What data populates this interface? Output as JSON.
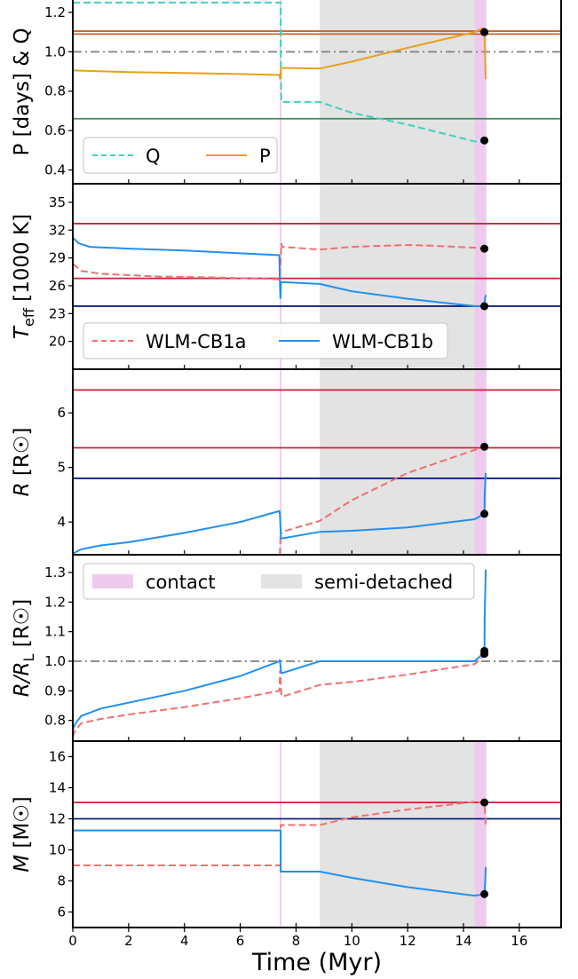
{
  "figure": {
    "xlabel": "Time (Myr)",
    "xlim": [
      0,
      17.5
    ],
    "xticks": [
      0,
      2,
      4,
      6,
      8,
      10,
      12,
      14,
      16
    ]
  },
  "chart_data": [
    {
      "type": "line",
      "ylabel": "P [days] & Q",
      "ylim": [
        0.33,
        1.29
      ],
      "yticks": [
        0.4,
        0.6,
        0.8,
        1.0,
        1.2
      ],
      "ytick_labels": [
        "0.4",
        "0.6",
        "0.8",
        "1.0",
        "1.2"
      ],
      "bands": [
        {
          "name": "semi-detached",
          "x0": 8.85,
          "x1": 14.4,
          "color": "#e3e3e3"
        },
        {
          "name": "contact",
          "x0": 14.4,
          "x1": 14.82,
          "color": "#eecbee"
        },
        {
          "name": "contact",
          "x0": 7.42,
          "x1": 7.48,
          "color": "#eecbee"
        }
      ],
      "hlines": [
        {
          "y": 1.105,
          "color": "#c8642a",
          "style": "solid"
        },
        {
          "y": 1.09,
          "color": "#c8642a",
          "style": "solid"
        },
        {
          "y": 1.0,
          "color": "#808080",
          "style": "dashdot"
        },
        {
          "y": 0.66,
          "color": "#3c8c5a",
          "style": "solid"
        }
      ],
      "series": [
        {
          "name": "Q",
          "color": "#40d0c0",
          "style": "dashed",
          "x": [
            0,
            7.45,
            7.45,
            7.47,
            8.85,
            10,
            12,
            14.4,
            14.75,
            14.75,
            14.82
          ],
          "y": [
            1.25,
            1.25,
            1.0,
            0.745,
            0.745,
            0.69,
            0.63,
            0.545,
            0.54,
            0.53,
            0.55
          ]
        },
        {
          "name": "P",
          "color": "#e8a020",
          "style": "solid",
          "x": [
            0,
            2,
            4,
            6,
            7.4,
            7.43,
            7.46,
            7.5,
            8.85,
            10,
            12,
            14.4,
            14.7,
            14.75,
            14.78,
            14.8
          ],
          "y": [
            0.905,
            0.897,
            0.892,
            0.887,
            0.882,
            0.86,
            0.92,
            0.918,
            0.915,
            0.95,
            1.02,
            1.1,
            1.12,
            1.1,
            0.95,
            0.86
          ]
        }
      ],
      "markers": [
        {
          "x": 14.75,
          "y": 1.1
        },
        {
          "x": 14.75,
          "y": 0.55
        }
      ],
      "legend": {
        "placement": "lower-left",
        "entries": [
          "Q",
          "P"
        ]
      }
    },
    {
      "type": "line",
      "ylabel": "T_eff [1000 K]",
      "ylabel_main": "T",
      "ylabel_sub": "eff",
      "ylabel_rest": " [1000 K]",
      "ylim": [
        17.0,
        37.0
      ],
      "yticks": [
        20,
        23,
        26,
        29,
        32,
        35
      ],
      "ytick_labels": [
        "20",
        "23",
        "26",
        "29",
        "32",
        "35"
      ],
      "bands": [
        {
          "name": "semi-detached",
          "x0": 8.85,
          "x1": 14.4,
          "color": "#e3e3e3"
        },
        {
          "name": "contact",
          "x0": 14.4,
          "x1": 14.82,
          "color": "#eecbee"
        },
        {
          "name": "contact",
          "x0": 7.42,
          "x1": 7.48,
          "color": "#eecbee"
        }
      ],
      "hlines": [
        {
          "y": 32.7,
          "color": "#d0203c",
          "style": "solid"
        },
        {
          "y": 26.8,
          "color": "#d0203c",
          "style": "solid"
        },
        {
          "y": 23.8,
          "color": "#10207a",
          "style": "solid"
        }
      ],
      "series": [
        {
          "name": "WLM-CB1a",
          "color": "#f07070",
          "style": "dashed",
          "x": [
            0,
            0.3,
            1,
            3,
            5,
            7.4,
            7.45,
            7.47,
            7.5,
            8.85,
            10,
            12,
            13,
            14.4,
            14.75
          ],
          "y": [
            28.4,
            27.6,
            27.3,
            27.0,
            26.9,
            26.7,
            28.5,
            30.6,
            30.2,
            29.9,
            30.2,
            30.4,
            30.3,
            30.1,
            30.0
          ]
        },
        {
          "name": "WLM-CB1b",
          "color": "#2090f0",
          "style": "solid",
          "x": [
            0,
            0.2,
            0.6,
            2,
            4,
            6,
            7.4,
            7.42,
            7.44,
            7.46,
            8.85,
            10,
            12,
            14.4,
            14.75,
            14.76,
            14.8
          ],
          "y": [
            31.2,
            30.6,
            30.2,
            30.0,
            29.8,
            29.5,
            29.3,
            26.5,
            24.6,
            26.4,
            26.2,
            25.4,
            24.6,
            23.8,
            23.8,
            24.4,
            25.0
          ]
        }
      ],
      "markers": [
        {
          "x": 14.75,
          "y": 30.0
        },
        {
          "x": 14.75,
          "y": 23.8
        }
      ],
      "legend": {
        "placement": "lower-left",
        "entries": [
          "WLM-CB1a",
          "WLM-CB1b"
        ]
      }
    },
    {
      "type": "line",
      "ylabel": "R [R☉]",
      "ylabel_main": "R",
      "ylabel_rest": " [R☉]",
      "ylim": [
        3.4,
        6.8
      ],
      "yticks": [
        4,
        5,
        6
      ],
      "ytick_labels": [
        "4",
        "5",
        "6"
      ],
      "bands": [
        {
          "name": "semi-detached",
          "x0": 8.85,
          "x1": 14.4,
          "color": "#e3e3e3"
        },
        {
          "name": "contact",
          "x0": 14.4,
          "x1": 14.82,
          "color": "#eecbee"
        },
        {
          "name": "contact",
          "x0": 7.42,
          "x1": 7.48,
          "color": "#eecbee"
        }
      ],
      "hlines": [
        {
          "y": 6.42,
          "color": "#d0203c",
          "style": "solid"
        },
        {
          "y": 5.36,
          "color": "#d0203c",
          "style": "solid"
        },
        {
          "y": 4.8,
          "color": "#10207a",
          "style": "solid"
        }
      ],
      "series": [
        {
          "name": "WLM-CB1a",
          "color": "#f07070",
          "style": "dashed",
          "x": [
            7.42,
            7.45,
            7.47,
            7.5,
            8.85,
            10,
            12,
            14.4,
            14.75
          ],
          "y": [
            3.4,
            3.85,
            3.8,
            3.82,
            4.02,
            4.4,
            4.9,
            5.32,
            5.38
          ]
        },
        {
          "name": "WLM-CB1b",
          "color": "#2090f0",
          "style": "solid",
          "x": [
            0,
            0.3,
            1,
            2,
            4,
            6,
            7.4,
            7.42,
            7.46,
            7.5,
            8.85,
            10,
            12,
            14.4,
            14.75,
            14.76,
            14.8
          ],
          "y": [
            3.42,
            3.5,
            3.57,
            3.63,
            3.8,
            4.0,
            4.2,
            4.15,
            3.7,
            3.7,
            3.82,
            3.84,
            3.9,
            4.05,
            4.15,
            4.5,
            4.9
          ]
        }
      ],
      "markers": [
        {
          "x": 14.75,
          "y": 5.38
        },
        {
          "x": 14.75,
          "y": 4.15
        }
      ]
    },
    {
      "type": "line",
      "ylabel": "R/R_L [R☉]",
      "ylabel_main": "R/R",
      "ylabel_sub": "L",
      "ylabel_rest": " [R☉]",
      "ylim": [
        0.73,
        1.36
      ],
      "yticks": [
        0.8,
        0.9,
        1.0,
        1.1,
        1.2,
        1.3
      ],
      "ytick_labels": [
        "0.8",
        "0.9",
        "1.0",
        "1.1",
        "1.2",
        "1.3"
      ],
      "bands": [],
      "hlines": [
        {
          "y": 1.0,
          "color": "#808080",
          "style": "dashdot"
        }
      ],
      "series": [
        {
          "name": "WLM-CB1a",
          "color": "#f07070",
          "style": "dashed",
          "x": [
            0,
            0.1,
            0.3,
            1,
            2,
            4,
            6,
            7.4,
            7.43,
            7.47,
            7.5,
            8.85,
            10,
            12,
            14.4,
            14.75
          ],
          "y": [
            0.745,
            0.77,
            0.79,
            0.805,
            0.82,
            0.845,
            0.875,
            0.9,
            0.97,
            0.89,
            0.88,
            0.92,
            0.93,
            0.955,
            0.99,
            1.02
          ]
        },
        {
          "name": "WLM-CB1b",
          "color": "#2090f0",
          "style": "solid",
          "x": [
            0,
            0.1,
            0.3,
            1,
            2,
            4,
            6,
            7.4,
            7.42,
            7.46,
            7.5,
            8.85,
            10,
            12,
            14.4,
            14.75,
            14.76,
            14.8
          ],
          "y": [
            0.77,
            0.79,
            0.815,
            0.84,
            0.86,
            0.9,
            0.95,
            1.0,
            1.005,
            0.965,
            0.96,
            1.0,
            1.0,
            1.0,
            1.0,
            1.03,
            1.15,
            1.31
          ]
        }
      ],
      "markers": [
        {
          "x": 14.75,
          "y": 1.035
        },
        {
          "x": 14.75,
          "y": 1.025
        }
      ],
      "legend": {
        "placement": "upper-left",
        "entries": [
          "contact",
          "semi-detached"
        ],
        "colors": [
          "#eecbee",
          "#e3e3e3"
        ]
      }
    },
    {
      "type": "line",
      "ylabel": "M [M☉]",
      "ylabel_main": "M",
      "ylabel_rest": " [M☉]",
      "ylim": [
        5.0,
        17.0
      ],
      "yticks": [
        6,
        8,
        10,
        12,
        14,
        16
      ],
      "ytick_labels": [
        "6",
        "8",
        "10",
        "12",
        "14",
        "16"
      ],
      "bands": [
        {
          "name": "semi-detached",
          "x0": 8.85,
          "x1": 14.4,
          "color": "#e3e3e3"
        },
        {
          "name": "contact",
          "x0": 14.4,
          "x1": 14.82,
          "color": "#eecbee"
        },
        {
          "name": "contact",
          "x0": 7.42,
          "x1": 7.48,
          "color": "#eecbee"
        }
      ],
      "hlines": [
        {
          "y": 13.05,
          "color": "#d0203c",
          "style": "solid"
        },
        {
          "y": 12.0,
          "color": "#10207a",
          "style": "solid"
        }
      ],
      "series": [
        {
          "name": "WLM-CB1a",
          "color": "#f07070",
          "style": "dashed",
          "x": [
            0,
            7.45,
            7.45,
            7.5,
            8.85,
            10,
            12,
            14.4,
            14.75,
            14.8
          ],
          "y": [
            9.0,
            9.0,
            11.6,
            11.6,
            11.6,
            12.1,
            12.6,
            13.1,
            13.05,
            11.5
          ]
        },
        {
          "name": "WLM-CB1b",
          "color": "#2090f0",
          "style": "solid",
          "x": [
            0,
            7.45,
            7.45,
            7.5,
            8.85,
            10,
            12,
            14.4,
            14.75,
            14.78,
            14.8
          ],
          "y": [
            11.25,
            11.25,
            8.6,
            8.6,
            8.6,
            8.2,
            7.6,
            7.05,
            7.15,
            8.0,
            8.9
          ]
        }
      ],
      "markers": [
        {
          "x": 14.75,
          "y": 13.05
        },
        {
          "x": 14.75,
          "y": 7.15
        }
      ]
    }
  ]
}
